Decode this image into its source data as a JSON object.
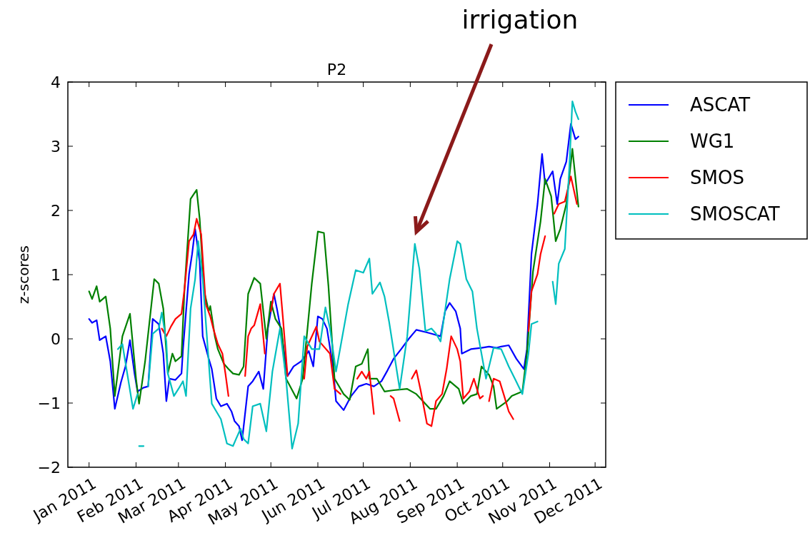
{
  "chart_data": {
    "type": "line",
    "title": "P2",
    "ylabel": "z-scores",
    "legend": "right",
    "annotations": [
      "irrigation"
    ],
    "xlim": [
      "2010-12-18",
      "2011-12-08"
    ],
    "xticks": [
      {
        "value": "2011-01-01",
        "label": "Jan 2011"
      },
      {
        "value": "2011-02-01",
        "label": "Feb 2011"
      },
      {
        "value": "2011-03-01",
        "label": "Mar 2011"
      },
      {
        "value": "2011-04-01",
        "label": "Apr 2011"
      },
      {
        "value": "2011-05-01",
        "label": "May 2011"
      },
      {
        "value": "2011-06-01",
        "label": "Jun 2011"
      },
      {
        "value": "2011-07-01",
        "label": "Jul 2011"
      },
      {
        "value": "2011-08-01",
        "label": "Aug 2011"
      },
      {
        "value": "2011-09-01",
        "label": "Sep 2011"
      },
      {
        "value": "2011-10-01",
        "label": "Oct 2011"
      },
      {
        "value": "2011-11-01",
        "label": "Nov 2011"
      },
      {
        "value": "2011-12-01",
        "label": "Dec 2011"
      }
    ],
    "ylim": [
      -2,
      4
    ],
    "yticks": [
      {
        "value": -2,
        "label": "−2"
      },
      {
        "value": -1,
        "label": "−1"
      },
      0,
      1,
      2,
      3,
      4
    ],
    "series": [
      {
        "name": "ASCAT",
        "color": "#0000ff",
        "x": [
          "2011-01-01",
          "2011-01-03",
          "2011-01-06",
          "2011-01-08",
          "2011-01-12",
          "2011-01-15",
          "2011-01-18",
          "2011-01-22",
          "2011-01-25",
          "2011-01-28",
          "2011-01-31",
          "2011-02-02",
          "2011-02-06",
          "2011-02-09",
          "2011-02-12",
          "2011-02-16",
          "2011-02-19",
          "2011-02-21",
          "2011-02-23",
          "2011-02-27",
          "2011-03-03",
          "2011-03-04",
          "2011-03-08",
          "2011-03-10",
          "2011-03-12",
          "2011-03-15",
          "2011-03-17",
          "2011-03-21",
          "2011-03-23",
          "2011-03-26",
          "2011-03-29",
          "2011-04-02",
          "2011-04-05",
          "2011-04-07",
          "2011-04-10",
          "2011-04-12",
          "2011-04-16",
          "2011-04-19",
          "2011-04-23",
          "2011-04-26",
          "2011-04-29",
          "2011-05-03",
          "2011-05-05",
          "2011-05-08",
          "2011-05-12",
          "2011-05-16",
          "2011-05-21",
          "2011-05-26",
          "2011-05-29",
          "2011-06-01",
          "2011-06-04",
          "2011-06-07",
          "2011-06-11",
          "2011-06-13",
          "2011-06-18",
          "2011-06-23",
          "2011-06-28",
          "2011-07-03",
          "2011-07-08",
          "2011-07-13",
          "2011-07-17",
          "2011-07-21",
          "2011-07-26",
          "2011-07-31",
          "2011-08-05",
          "2011-08-12",
          "2011-08-15",
          "2011-08-21",
          "2011-08-24",
          "2011-08-27",
          "2011-08-31",
          "2011-09-03",
          "2011-09-04",
          "2011-09-10",
          "2011-09-17",
          "2011-09-22",
          "2011-09-27",
          "2011-09-30",
          "2011-10-05",
          "2011-10-10",
          "2011-10-15",
          "2011-10-17",
          "2011-10-20",
          "2011-10-24",
          "2011-10-27",
          "2011-10-29",
          "2011-11-03",
          "2011-11-06",
          "2011-11-08",
          "2011-11-12",
          "2011-11-15",
          "2011-11-18",
          "2011-11-20"
        ],
        "values": [
          0.31,
          0.25,
          0.29,
          -0.02,
          0.04,
          -0.35,
          -1.09,
          -0.68,
          -0.43,
          -0.02,
          -0.54,
          -0.82,
          -0.76,
          -0.74,
          0.31,
          0.23,
          -0.23,
          -0.97,
          -0.62,
          -0.64,
          -0.54,
          -0.16,
          1.01,
          1.32,
          1.71,
          1.21,
          0.04,
          -0.31,
          -0.47,
          -0.93,
          -1.05,
          -1.01,
          -1.13,
          -1.28,
          -1.36,
          -1.58,
          -0.74,
          -0.66,
          -0.51,
          -0.78,
          0.16,
          0.7,
          0.47,
          0.08,
          -0.58,
          -0.43,
          -0.35,
          -0.19,
          -0.43,
          0.35,
          0.31,
          0.16,
          -0.43,
          -0.97,
          -1.11,
          -0.89,
          -0.74,
          -0.7,
          -0.74,
          -0.66,
          -0.49,
          -0.31,
          -0.16,
          0,
          0.14,
          0.1,
          0.08,
          0.04,
          0.43,
          0.56,
          0.43,
          0.16,
          -0.23,
          -0.16,
          -0.14,
          -0.12,
          -0.14,
          -0.12,
          -0.1,
          -0.31,
          -0.47,
          -0.16,
          1.32,
          2.1,
          2.88,
          2.41,
          2.61,
          2.1,
          2.49,
          2.76,
          3.35,
          3.11,
          3.15
        ]
      },
      {
        "name": "WG1",
        "color": "#008000",
        "x": [
          "2011-01-01",
          "2011-01-03",
          "2011-01-06",
          "2011-01-08",
          "2011-01-12",
          "2011-01-15",
          "2011-01-18",
          "2011-01-23",
          "2011-01-28",
          "2011-02-01",
          "2011-02-03",
          "2011-02-07",
          "2011-02-13",
          "2011-02-16",
          "2011-02-19",
          "2011-02-22",
          "2011-02-25",
          "2011-02-27",
          "2011-03-03",
          "2011-03-05",
          "2011-03-09",
          "2011-03-13",
          "2011-03-15",
          "2011-03-18",
          "2011-03-21",
          "2011-03-22",
          "2011-03-25",
          "2011-03-27",
          "2011-03-31",
          "2011-04-03",
          "2011-04-06",
          "2011-04-10",
          "2011-04-13",
          "2011-04-16",
          "2011-04-20",
          "2011-04-24",
          "2011-04-28",
          "2011-05-01",
          "2011-05-04",
          "2011-05-08",
          "2011-05-11",
          "2011-05-18",
          "2011-05-22",
          "2011-05-28",
          "2011-06-01",
          "2011-06-05",
          "2011-06-08",
          "2011-06-12",
          "2011-06-18",
          "2011-06-22",
          "2011-06-26",
          "2011-06-30",
          "2011-07-04",
          "2011-07-05",
          "2011-07-10",
          "2011-07-15",
          "2011-07-21",
          "2011-07-30",
          "2011-08-05",
          "2011-08-14",
          "2011-08-18",
          "2011-08-23",
          "2011-08-27",
          "2011-09-02",
          "2011-09-05",
          "2011-09-10",
          "2011-09-14",
          "2011-09-17",
          "2011-09-22",
          "2011-09-25",
          "2011-09-27",
          "2011-10-04",
          "2011-10-07",
          "2011-10-14",
          "2011-10-17",
          "2011-10-21",
          "2011-10-26",
          "2011-10-29",
          "2011-11-02",
          "2011-11-05",
          "2011-11-08",
          "2011-11-12",
          "2011-11-16",
          "2011-11-20"
        ],
        "values": [
          0.74,
          0.62,
          0.82,
          0.58,
          0.66,
          0.16,
          -0.89,
          0.04,
          0.39,
          -0.62,
          -1.01,
          -0.35,
          0.93,
          0.86,
          0.47,
          -0.54,
          -0.23,
          -0.35,
          -0.27,
          0.78,
          2.18,
          2.32,
          1.87,
          0.74,
          0.43,
          0.51,
          0.04,
          -0.16,
          -0.39,
          -0.47,
          -0.54,
          -0.56,
          -0.43,
          0.7,
          0.95,
          0.86,
          0,
          0.58,
          0.31,
          0.16,
          -0.62,
          -0.93,
          -0.62,
          0.86,
          1.67,
          1.65,
          0.82,
          -0.62,
          -0.86,
          -0.95,
          -0.43,
          -0.39,
          -0.16,
          -0.62,
          -0.62,
          -0.82,
          -0.8,
          -0.78,
          -0.86,
          -1.09,
          -1.09,
          -0.89,
          -0.66,
          -0.78,
          -1.01,
          -0.89,
          -0.86,
          -0.43,
          -0.56,
          -0.74,
          -1.09,
          -0.97,
          -0.89,
          -0.82,
          -0.23,
          1.05,
          1.83,
          2.49,
          2.22,
          1.52,
          1.71,
          2.1,
          2.96,
          2.06
        ]
      },
      {
        "name": "SMOS",
        "color": "#ff0000",
        "x": [
          "2011-02-18",
          "2011-02-21",
          "2011-02-24",
          "2011-02-27",
          "2011-03-03",
          "2011-03-05",
          "2011-03-08",
          "2011-03-11",
          "2011-03-13",
          "2011-03-16",
          "2011-03-19",
          "2011-03-22",
          "2011-03-24",
          "2011-03-27",
          "2011-03-30",
          "2011-04-01",
          "2011-04-03",
          "2011-04-09",
          "2011-04-14",
          "2011-04-16",
          "2011-04-18",
          "2011-04-20",
          "2011-04-24",
          "2011-04-27",
          "2011-04-29",
          "2011-05-01",
          "2011-05-03",
          "2011-05-07",
          "2011-05-09",
          "2011-05-12",
          "2011-05-15",
          "2011-05-23",
          "2011-05-25",
          "2011-05-31",
          "2011-06-02",
          "2011-06-09",
          "2011-06-12",
          "2011-06-16",
          "2011-06-20",
          "2011-06-27",
          "2011-06-30",
          "2011-07-03",
          "2011-07-05",
          "2011-07-08",
          "2011-07-12",
          "2011-07-19",
          "2011-07-21",
          "2011-07-25",
          "2011-07-29",
          "2011-08-02",
          "2011-08-05",
          "2011-08-08",
          "2011-08-12",
          "2011-08-15",
          "2011-08-18",
          "2011-08-22",
          "2011-08-25",
          "2011-08-28",
          "2011-09-01",
          "2011-09-03",
          "2011-09-05",
          "2011-09-09",
          "2011-09-12",
          "2011-09-15",
          "2011-09-16",
          "2011-09-18",
          "2011-09-20",
          "2011-09-22",
          "2011-09-25",
          "2011-09-29",
          "2011-10-02",
          "2011-10-05",
          "2011-10-08",
          "2011-10-12",
          "2011-10-18",
          "2011-10-20",
          "2011-10-24",
          "2011-10-26",
          "2011-10-29",
          "2011-11-01",
          "2011-11-04",
          "2011-11-07",
          "2011-11-11",
          "2011-11-15",
          "2011-11-19"
        ],
        "values": [
          0.16,
          0.04,
          0.19,
          0.31,
          0.39,
          0.78,
          1.52,
          1.63,
          1.87,
          1.63,
          0.54,
          0.35,
          0.16,
          -0.08,
          -0.23,
          -0.54,
          -0.89,
          null,
          -0.58,
          0.04,
          0.16,
          0.21,
          0.54,
          -0.23,
          null,
          0.43,
          0.7,
          0.86,
          0.31,
          -0.58,
          null,
          -0.62,
          -0.12,
          0.19,
          -0.04,
          -0.23,
          -0.78,
          -0.86,
          null,
          -0.62,
          -0.51,
          -0.62,
          -0.51,
          -1.17,
          null,
          -0.89,
          -0.93,
          -1.28,
          null,
          -0.62,
          -0.49,
          -0.82,
          -1.32,
          -1.36,
          -0.97,
          -0.86,
          -0.47,
          0.04,
          -0.16,
          -0.35,
          -0.93,
          -0.82,
          -0.62,
          -0.86,
          -0.93,
          -0.89,
          null,
          -0.97,
          -0.62,
          -0.66,
          -0.89,
          -1.13,
          -1.25,
          null,
          0.12,
          0.74,
          1.01,
          1.32,
          1.6,
          null,
          1.95,
          2.1,
          2.14,
          2.53,
          2.1
        ]
      },
      {
        "name": "SMOSCAT",
        "color": "#00bfbf",
        "x": [
          "2011-01-20",
          "2011-01-23",
          "2011-01-30",
          "2011-02-02",
          "2011-02-02T12:00",
          "2011-02-03",
          "2011-02-06",
          "2011-02-07",
          "2011-02-09",
          "2011-02-12",
          "2011-02-16",
          "2011-02-18",
          "2011-02-21",
          "2011-02-22",
          "2011-02-26",
          "2011-03-01",
          "2011-03-04",
          "2011-03-06",
          "2011-03-09",
          "2011-03-12",
          "2011-03-14",
          "2011-03-17",
          "2011-03-20",
          "2011-03-23",
          "2011-03-26",
          "2011-03-29",
          "2011-04-02",
          "2011-04-06",
          "2011-04-08",
          "2011-04-11",
          "2011-04-13",
          "2011-04-16",
          "2011-04-19",
          "2011-04-24",
          "2011-04-28",
          "2011-05-02",
          "2011-05-07",
          "2011-05-11",
          "2011-05-15",
          "2011-05-19",
          "2011-05-23",
          "2011-05-28",
          "2011-06-02",
          "2011-06-06",
          "2011-06-09",
          "2011-06-13",
          "2011-06-21",
          "2011-06-26",
          "2011-07-01",
          "2011-07-05",
          "2011-07-07",
          "2011-07-12",
          "2011-07-15",
          "2011-07-18",
          "2011-07-25",
          "2011-07-30",
          "2011-08-04",
          "2011-08-07",
          "2011-08-11",
          "2011-08-15",
          "2011-08-18",
          "2011-08-21",
          "2011-08-27",
          "2011-09-01",
          "2011-09-03",
          "2011-09-07",
          "2011-09-11",
          "2011-09-14",
          "2011-09-20",
          "2011-09-22",
          "2011-09-25",
          "2011-09-30",
          "2011-10-05",
          "2011-10-09",
          "2011-10-14",
          "2011-10-18",
          "2011-10-20",
          "2011-10-24",
          "2011-11-01",
          "2011-11-03",
          "2011-11-05",
          "2011-11-07",
          "2011-11-11",
          "2011-11-14",
          "2011-11-16",
          "2011-11-18",
          "2011-11-20"
        ],
        "values": [
          -0.16,
          -0.08,
          -1.09,
          -0.86,
          null,
          -1.67,
          -1.67,
          null,
          -0.74,
          0.08,
          0.16,
          0.41,
          -0.04,
          -0.54,
          -0.89,
          -0.78,
          -0.66,
          -0.89,
          0.47,
          0.93,
          1.52,
          0.93,
          -0.04,
          -1.01,
          -1.13,
          -1.25,
          -1.63,
          -1.67,
          -1.56,
          -1.4,
          -1.56,
          -1.63,
          -1.05,
          -1.01,
          -1.44,
          -0.51,
          0.16,
          -0.62,
          -1.71,
          -1.32,
          0.04,
          -0.16,
          -0.16,
          0.49,
          0.16,
          -0.51,
          0.54,
          1.07,
          1.03,
          1.25,
          0.7,
          0.88,
          0.66,
          0.27,
          -0.78,
          0.04,
          1.48,
          1.09,
          0.12,
          0.16,
          0.08,
          -0.04,
          0.93,
          1.52,
          1.48,
          0.93,
          0.74,
          0.16,
          -0.62,
          -0.43,
          -0.14,
          -0.16,
          -0.43,
          -0.62,
          -0.86,
          -0.23,
          0.23,
          0.27,
          null,
          0.89,
          0.54,
          1.17,
          1.4,
          2.68,
          3.7,
          3.54,
          3.42
        ]
      }
    ]
  }
}
